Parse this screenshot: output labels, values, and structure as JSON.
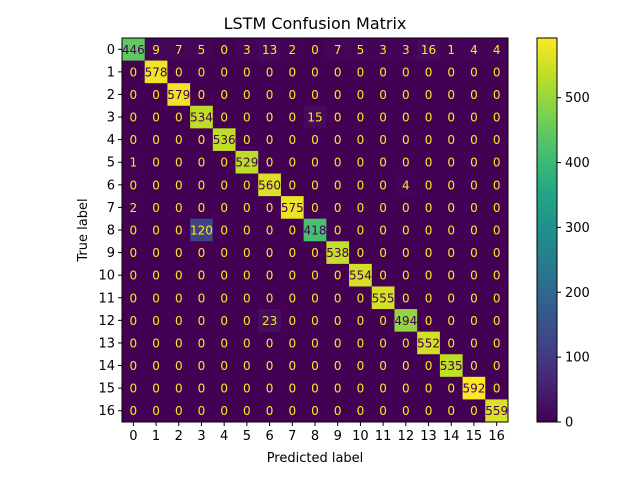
{
  "chart_data": {
    "type": "heatmap",
    "title": "LSTM Confusion Matrix",
    "xlabel": "Predicted label",
    "ylabel": "True label",
    "x_categories": [
      "0",
      "1",
      "2",
      "3",
      "4",
      "5",
      "6",
      "7",
      "8",
      "9",
      "10",
      "11",
      "12",
      "13",
      "14",
      "15",
      "16"
    ],
    "y_categories": [
      "0",
      "1",
      "2",
      "3",
      "4",
      "5",
      "6",
      "7",
      "8",
      "9",
      "10",
      "11",
      "12",
      "13",
      "14",
      "15",
      "16"
    ],
    "values": [
      [
        446,
        9,
        7,
        5,
        0,
        3,
        13,
        2,
        0,
        7,
        5,
        3,
        3,
        16,
        1,
        4,
        4
      ],
      [
        0,
        578,
        0,
        0,
        0,
        0,
        0,
        0,
        0,
        0,
        0,
        0,
        0,
        0,
        0,
        0,
        0
      ],
      [
        0,
        0,
        579,
        0,
        0,
        0,
        0,
        0,
        0,
        0,
        0,
        0,
        0,
        0,
        0,
        0,
        0
      ],
      [
        0,
        0,
        0,
        534,
        0,
        0,
        0,
        0,
        15,
        0,
        0,
        0,
        0,
        0,
        0,
        0,
        0
      ],
      [
        0,
        0,
        0,
        0,
        536,
        0,
        0,
        0,
        0,
        0,
        0,
        0,
        0,
        0,
        0,
        0,
        0
      ],
      [
        1,
        0,
        0,
        0,
        0,
        529,
        0,
        0,
        0,
        0,
        0,
        0,
        0,
        0,
        0,
        0,
        0
      ],
      [
        0,
        0,
        0,
        0,
        0,
        0,
        560,
        0,
        0,
        0,
        0,
        0,
        4,
        0,
        0,
        0,
        0
      ],
      [
        2,
        0,
        0,
        0,
        0,
        0,
        0,
        575,
        0,
        0,
        0,
        0,
        0,
        0,
        0,
        0,
        0
      ],
      [
        0,
        0,
        0,
        120,
        0,
        0,
        0,
        0,
        418,
        0,
        0,
        0,
        0,
        0,
        0,
        0,
        0
      ],
      [
        0,
        0,
        0,
        0,
        0,
        0,
        0,
        0,
        0,
        538,
        0,
        0,
        0,
        0,
        0,
        0,
        0
      ],
      [
        0,
        0,
        0,
        0,
        0,
        0,
        0,
        0,
        0,
        0,
        554,
        0,
        0,
        0,
        0,
        0,
        0
      ],
      [
        0,
        0,
        0,
        0,
        0,
        0,
        0,
        0,
        0,
        0,
        0,
        555,
        0,
        0,
        0,
        0,
        0
      ],
      [
        0,
        0,
        0,
        0,
        0,
        0,
        23,
        0,
        0,
        0,
        0,
        0,
        494,
        0,
        0,
        0,
        0
      ],
      [
        0,
        0,
        0,
        0,
        0,
        0,
        0,
        0,
        0,
        0,
        0,
        0,
        0,
        552,
        0,
        0,
        0
      ],
      [
        0,
        0,
        0,
        0,
        0,
        0,
        0,
        0,
        0,
        0,
        0,
        0,
        0,
        0,
        535,
        0,
        0
      ],
      [
        0,
        0,
        0,
        0,
        0,
        0,
        0,
        0,
        0,
        0,
        0,
        0,
        0,
        0,
        0,
        592,
        0
      ],
      [
        0,
        0,
        0,
        0,
        0,
        0,
        0,
        0,
        0,
        0,
        0,
        0,
        0,
        0,
        0,
        0,
        559
      ]
    ],
    "colormap": "viridis",
    "colorbar": {
      "range": [
        0,
        592
      ],
      "ticks": [
        0,
        100,
        200,
        300,
        400,
        500
      ]
    },
    "grid": false,
    "legend": "colorbar-right"
  }
}
